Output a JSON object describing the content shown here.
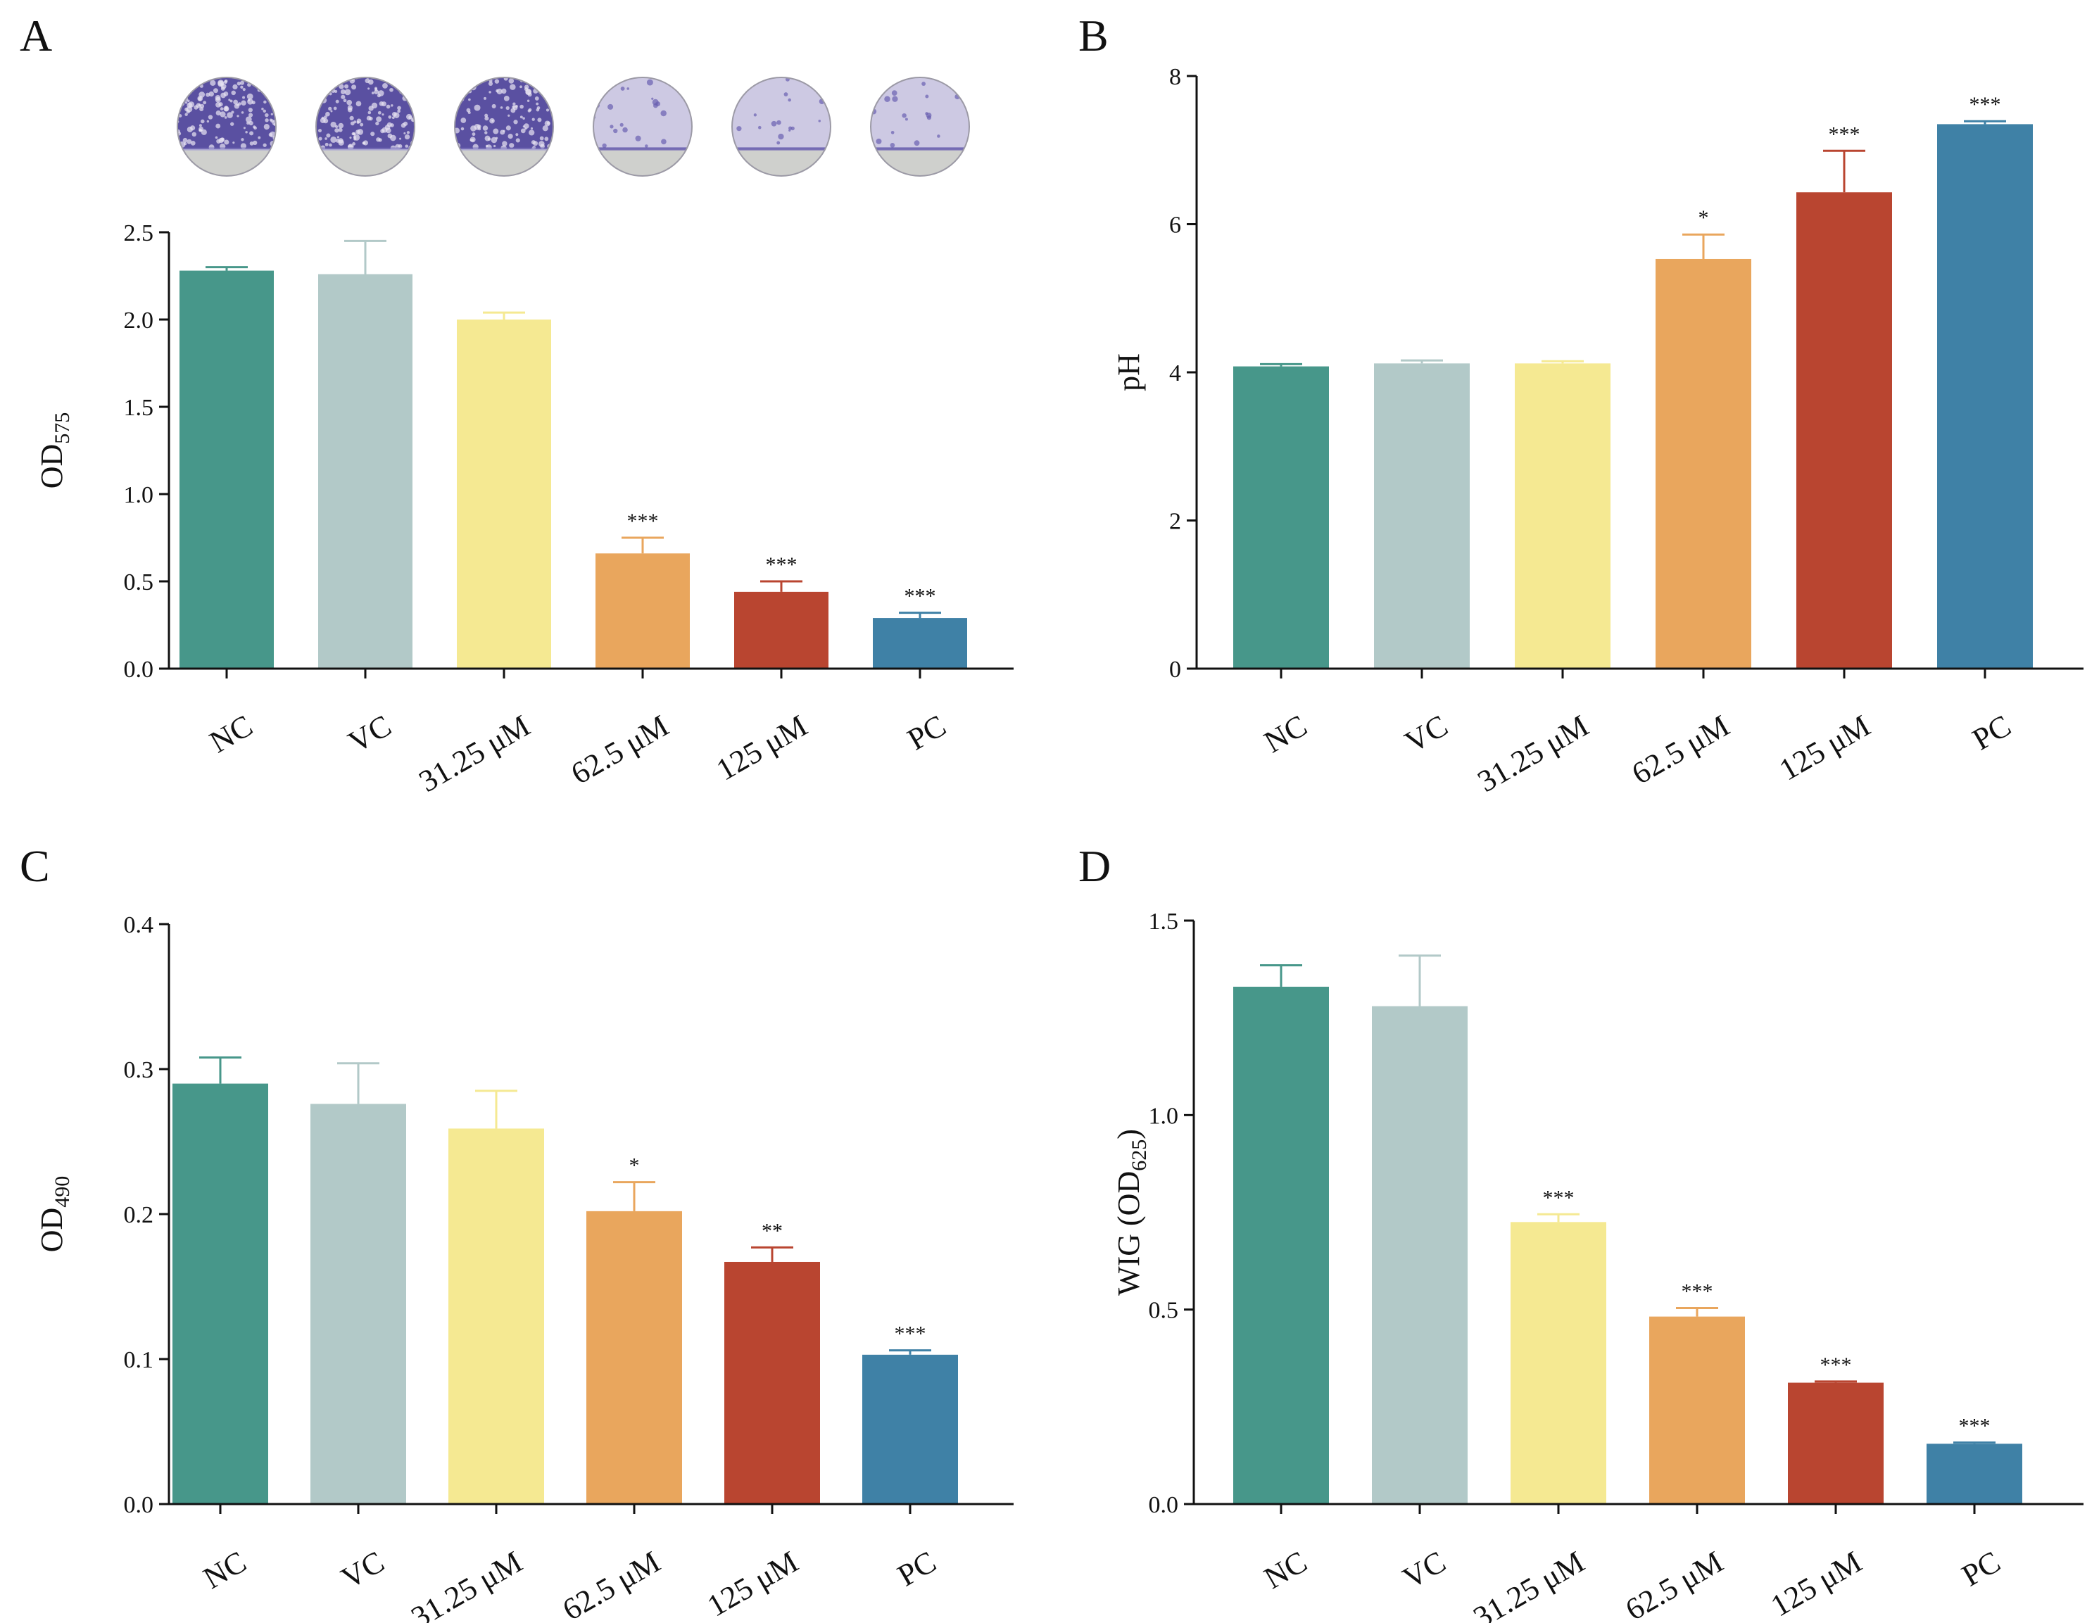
{
  "colors": {
    "NC": "#47978a",
    "VC": "#b2c9c8",
    "31.25 μM": "#f5e992",
    "62.5 μM": "#e9a65d",
    "125 μM": "#b94530",
    "PC": "#3f81a6"
  },
  "wells": {
    "description_labels": [
      "NC",
      "VC",
      "31.25 μM",
      "62.5 μM",
      "125 μM",
      "PC"
    ],
    "stain_level": [
      0.95,
      0.95,
      0.75,
      0.15,
      0.1,
      0.12
    ]
  },
  "chart_data": [
    {
      "panel": "A",
      "type": "bar",
      "title": "",
      "xlabel": "",
      "ylabel": "OD",
      "ylabel_sub": "575",
      "categories": [
        "NC",
        "VC",
        "31.25 μM",
        "62.5 μM",
        "125 μM",
        "PC"
      ],
      "values": [
        2.28,
        2.26,
        2.0,
        0.66,
        0.44,
        0.29
      ],
      "errors": [
        0.02,
        0.19,
        0.04,
        0.09,
        0.06,
        0.03
      ],
      "significance": [
        "",
        "",
        "",
        "***",
        "***",
        "***"
      ],
      "ylim": [
        0,
        2.5
      ],
      "yticks": [
        0.0,
        0.5,
        1.0,
        1.5,
        2.0,
        2.5
      ],
      "ytick_labels": [
        "0.0",
        "0.5",
        "1.0",
        "1.5",
        "2.0",
        "2.5"
      ]
    },
    {
      "panel": "B",
      "type": "bar",
      "title": "",
      "xlabel": "",
      "ylabel": "pH",
      "ylabel_sub": "",
      "categories": [
        "NC",
        "VC",
        "31.25 μM",
        "62.5 μM",
        "125 μM",
        "PC"
      ],
      "values": [
        4.08,
        4.12,
        4.12,
        5.53,
        6.43,
        7.35
      ],
      "errors": [
        0.03,
        0.04,
        0.03,
        0.33,
        0.56,
        0.04
      ],
      "significance": [
        "",
        "",
        "",
        "*",
        "***",
        "***"
      ],
      "ylim": [
        0,
        8
      ],
      "yticks": [
        0,
        2,
        4,
        6,
        8
      ],
      "ytick_labels": [
        "0",
        "2",
        "4",
        "6",
        "8"
      ]
    },
    {
      "panel": "C",
      "type": "bar",
      "title": "",
      "xlabel": "",
      "ylabel": "OD",
      "ylabel_sub": "490",
      "categories": [
        "NC",
        "VC",
        "31.25 μM",
        "62.5 μM",
        "125 μM",
        "PC"
      ],
      "values": [
        0.29,
        0.276,
        0.259,
        0.202,
        0.167,
        0.103
      ],
      "errors": [
        0.018,
        0.028,
        0.026,
        0.02,
        0.01,
        0.003
      ],
      "significance": [
        "",
        "",
        "",
        "*",
        "**",
        "***"
      ],
      "ylim": [
        0,
        0.4
      ],
      "yticks": [
        0.0,
        0.1,
        0.2,
        0.3,
        0.4
      ],
      "ytick_labels": [
        "0.0",
        "0.1",
        "0.2",
        "0.3",
        "0.4"
      ]
    },
    {
      "panel": "D",
      "type": "bar",
      "title": "",
      "xlabel": "",
      "ylabel": "WIG (OD",
      "ylabel_sub": "625",
      "ylabel_suffix": ")",
      "categories": [
        "NC",
        "VC",
        "31.25 μM",
        "62.5 μM",
        "125 μM",
        "PC"
      ],
      "values": [
        1.33,
        1.28,
        0.725,
        0.482,
        0.312,
        0.155
      ],
      "errors": [
        0.055,
        0.13,
        0.02,
        0.022,
        0.003,
        0.003
      ],
      "significance": [
        "",
        "",
        "***",
        "***",
        "***",
        "***"
      ],
      "ylim": [
        0,
        1.5
      ],
      "yticks": [
        0.0,
        0.5,
        1.0,
        1.5
      ],
      "ytick_labels": [
        "0.0",
        "0.5",
        "1.0",
        "1.5"
      ]
    }
  ]
}
